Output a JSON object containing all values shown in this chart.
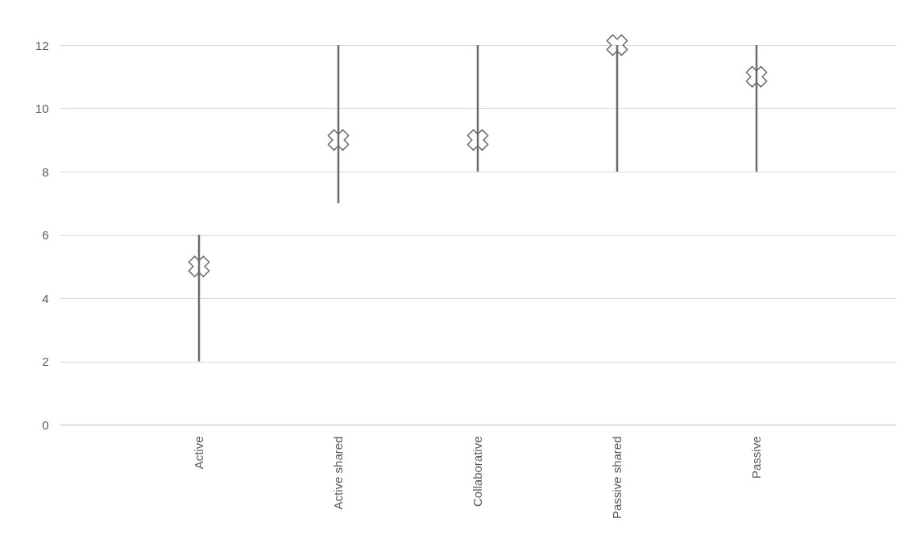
{
  "chart_data": {
    "type": "scatter",
    "categories": [
      "Active",
      "Active shared",
      "Collaborative",
      "Passive shared",
      "Passive"
    ],
    "series": [
      {
        "color": "#6b6b6b",
        "values": [
          5,
          9,
          9,
          12,
          11
        ],
        "errors": [
          [
            2,
            6
          ],
          [
            7,
            12
          ],
          [
            8,
            12
          ],
          [
            8,
            12
          ],
          [
            8,
            12
          ]
        ]
      }
    ],
    "ylim": [
      0,
      12
    ],
    "yticks": [
      0,
      2,
      4,
      6,
      8,
      10,
      12
    ],
    "grid": "y",
    "marker": "cross"
  }
}
